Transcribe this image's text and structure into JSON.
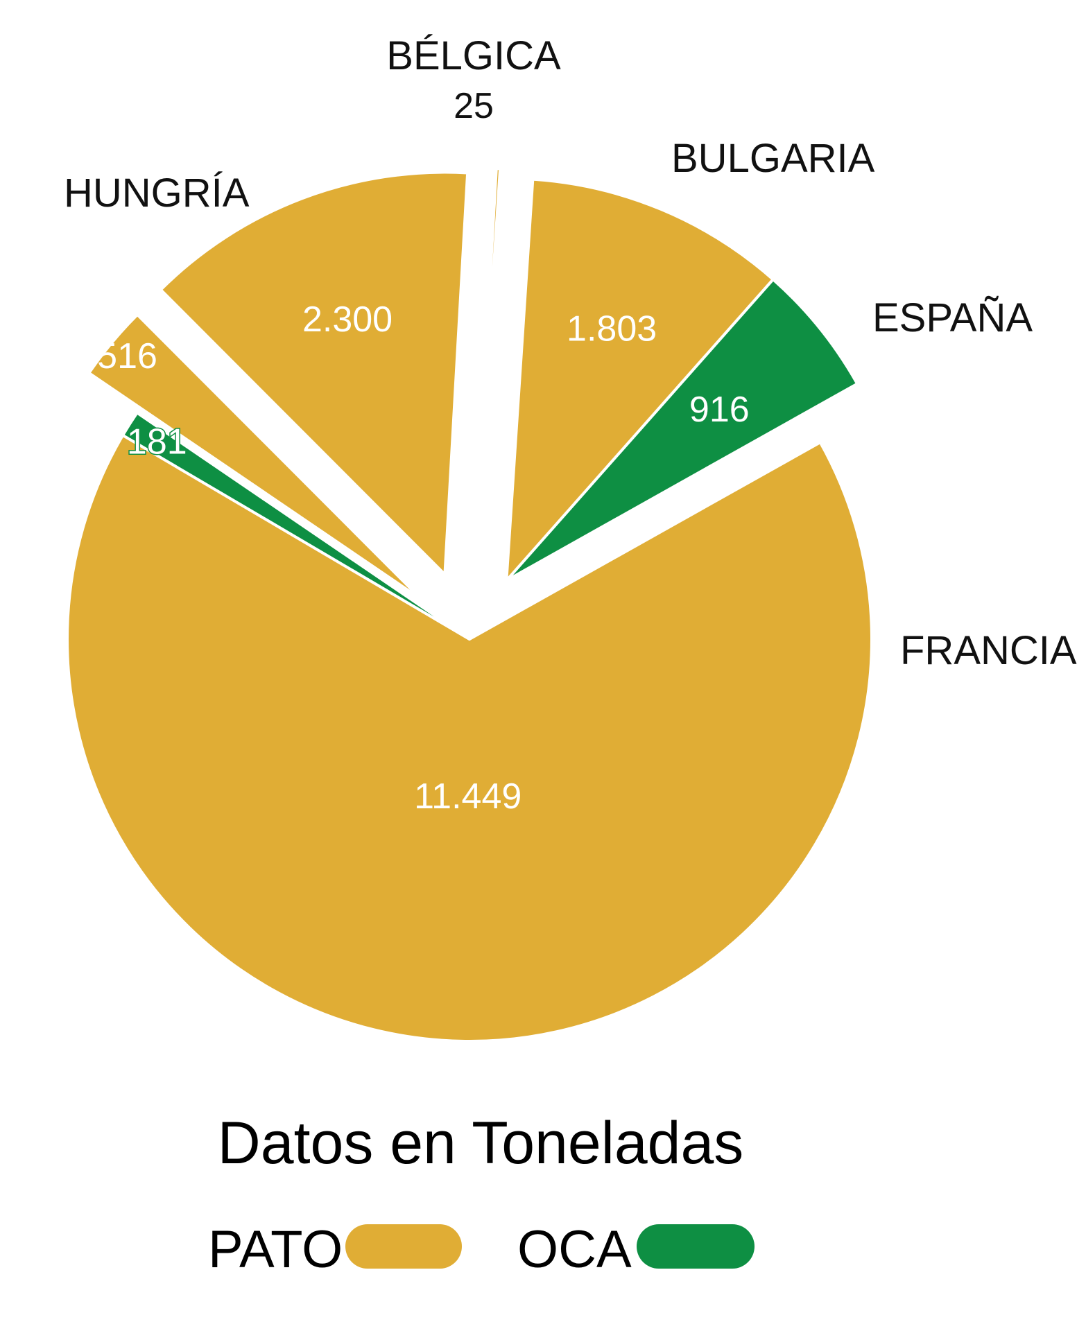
{
  "chart_data": {
    "type": "pie",
    "title": "Datos en Toneladas",
    "series_legend": [
      {
        "name": "PATO",
        "color": "#e0ad35"
      },
      {
        "name": "OCA",
        "color": "#0e8f43"
      }
    ],
    "slices": [
      {
        "country": "FRANCIA",
        "series": "PATO",
        "value": 11449,
        "value_label": "11.449"
      },
      {
        "country": "FRANCIA",
        "series": "OCA",
        "value": 181,
        "value_label": "181"
      },
      {
        "country": "ESPAÑA",
        "series": "PATO",
        "value": 516,
        "value_label": "516"
      },
      {
        "country": "BULGARIA",
        "series": "PATO",
        "value": 2300,
        "value_label": "2.300"
      },
      {
        "country": "BÉLGICA",
        "series": "PATO",
        "value": 25,
        "value_label": "25"
      },
      {
        "country": "HUNGRÍA",
        "series": "PATO",
        "value": 1803,
        "value_label": "1.803"
      },
      {
        "country": "HUNGRÍA",
        "series": "OCA",
        "value": 916,
        "value_label": "916"
      }
    ],
    "country_labels": [
      "FRANCIA",
      "ESPAÑA",
      "BULGARIA",
      "BÉLGICA",
      "HUNGRÍA"
    ]
  }
}
